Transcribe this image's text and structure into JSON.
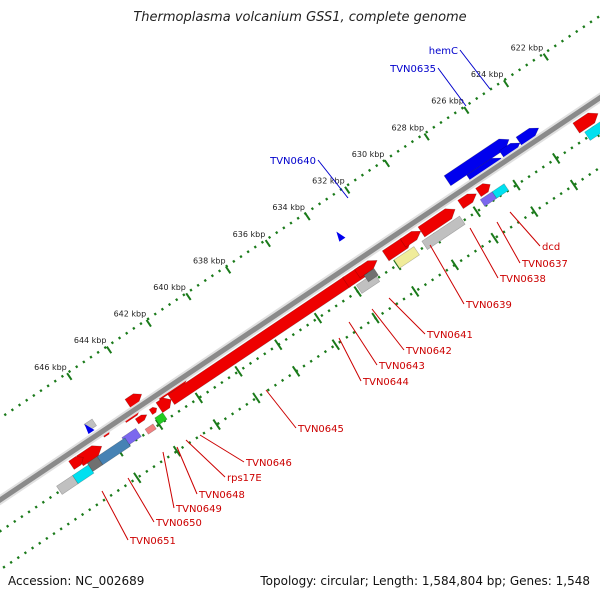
{
  "title": "Thermoplasma volcanium GSS1, complete genome",
  "footer": {
    "accession": "Accession: NC_002689",
    "summary": "Topology: circular; Length: 1,584,804 bp; Genes: 1,548"
  },
  "colors": {
    "backbone": "#8a8a8a",
    "tick": "#1a7a1a",
    "label_top": "#0000cc",
    "label_bottom": "#cc0000",
    "gene_red": "#ee0000",
    "gene_blue": "#0000ee",
    "gene_grey": "#c0c0c0",
    "gene_dark_grey": "#707070",
    "gene_yellow": "#f0ec9a",
    "gene_purple": "#7b68ee",
    "gene_cyan": "#00e0f0",
    "gene_steel": "#4682b4",
    "gene_green": "#22cc22",
    "gene_pink": "#f08080"
  },
  "kbp_labels": [
    "622 kbp",
    "624 kbp",
    "626 kbp",
    "628 kbp",
    "630 kbp",
    "632 kbp",
    "634 kbp",
    "636 kbp",
    "638 kbp",
    "640 kbp",
    "642 kbp",
    "644 kbp",
    "646 kbp"
  ],
  "top_genes": [
    "hemC",
    "TVN0635",
    "TVN0640"
  ],
  "bottom_genes": [
    "dcd",
    "TVN0637",
    "TVN0638",
    "TVN0639",
    "TVN0641",
    "TVN0642",
    "TVN0643",
    "TVN0644",
    "TVN0645",
    "TVN0646",
    "rps17E",
    "TVN0648",
    "TVN0649",
    "TVN0650",
    "TVN0651"
  ]
}
